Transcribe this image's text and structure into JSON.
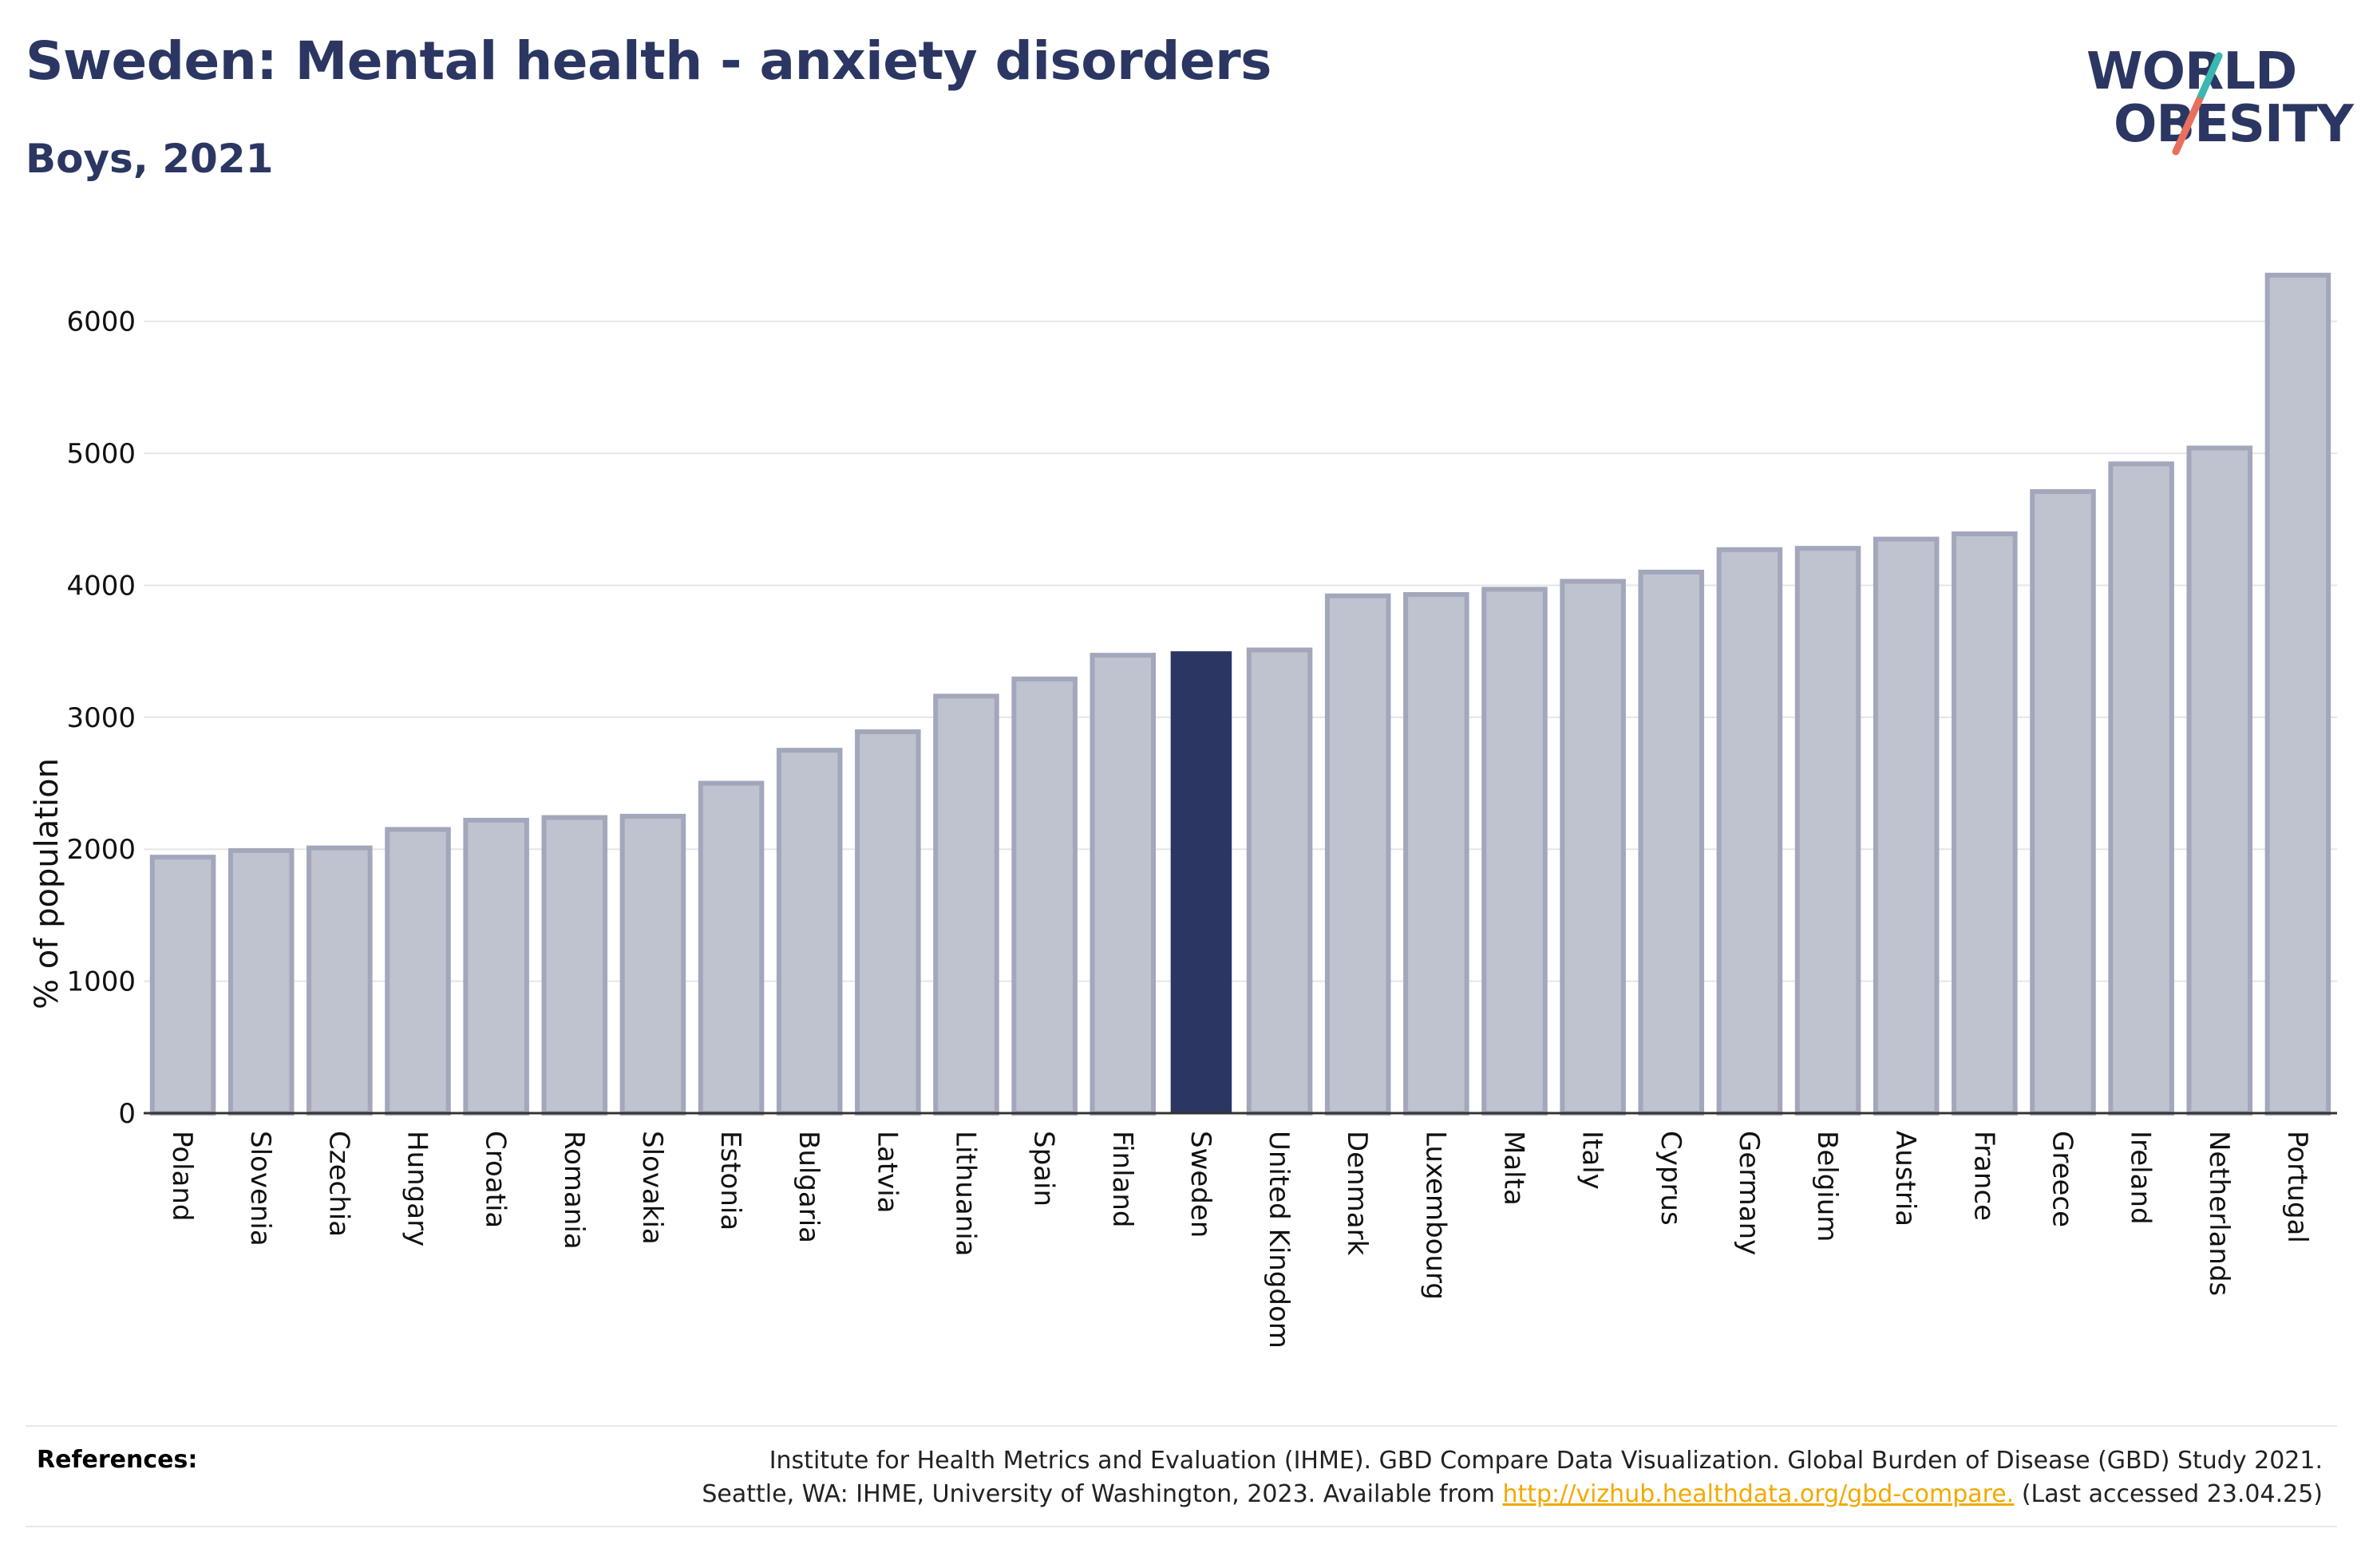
{
  "header": {
    "title": "Sweden: Mental health - anxiety disorders",
    "subtitle": "Boys, 2021"
  },
  "logo": {
    "line1": "WORLD",
    "line2": "OBESITY",
    "colors": {
      "text": "#2b3762",
      "slash_top": "#3ab7b0",
      "slash_bottom": "#e8705c"
    }
  },
  "colors": {
    "highlight": "#2b3762",
    "bar_fill": "#bfc3cf",
    "bar_stroke": "#a2a7bb",
    "grid": "#e6e6ea",
    "axis": "#333333"
  },
  "chart_data": {
    "type": "bar",
    "title": "Sweden: Mental health - anxiety disorders",
    "subtitle": "Boys, 2021",
    "ylabel": "% of population",
    "xlabel": "",
    "ylim": [
      0,
      6500
    ],
    "yticks": [
      0,
      1000,
      2000,
      3000,
      4000,
      5000,
      6000
    ],
    "grid": true,
    "highlight": "Sweden",
    "categories": [
      "Poland",
      "Slovenia",
      "Czechia",
      "Hungary",
      "Croatia",
      "Romania",
      "Slovakia",
      "Estonia",
      "Bulgaria",
      "Latvia",
      "Lithuania",
      "Spain",
      "Finland",
      "Sweden",
      "United Kingdom",
      "Denmark",
      "Luxembourg",
      "Malta",
      "Italy",
      "Cyprus",
      "Germany",
      "Belgium",
      "Austria",
      "France",
      "Greece",
      "Ireland",
      "Netherlands",
      "Portugal"
    ],
    "values": [
      1940,
      1990,
      2010,
      2150,
      2220,
      2240,
      2250,
      2500,
      2750,
      2890,
      3160,
      3290,
      3470,
      3500,
      3510,
      3920,
      3930,
      3970,
      4030,
      4100,
      4270,
      4280,
      4350,
      4390,
      4710,
      4920,
      5040,
      6350
    ]
  },
  "references": {
    "label": "References:",
    "line1": "Institute for Health Metrics and Evaluation (IHME). GBD Compare Data Visualization. Global Burden of Disease (GBD) Study 2021.",
    "line2_prefix": "Seattle, WA: IHME, University of Washington, 2023. Available from",
    "link": "http://vizhub.healthdata.org/gbd-compare.",
    "line2_suffix": "(Last accessed 23.04.25)"
  }
}
